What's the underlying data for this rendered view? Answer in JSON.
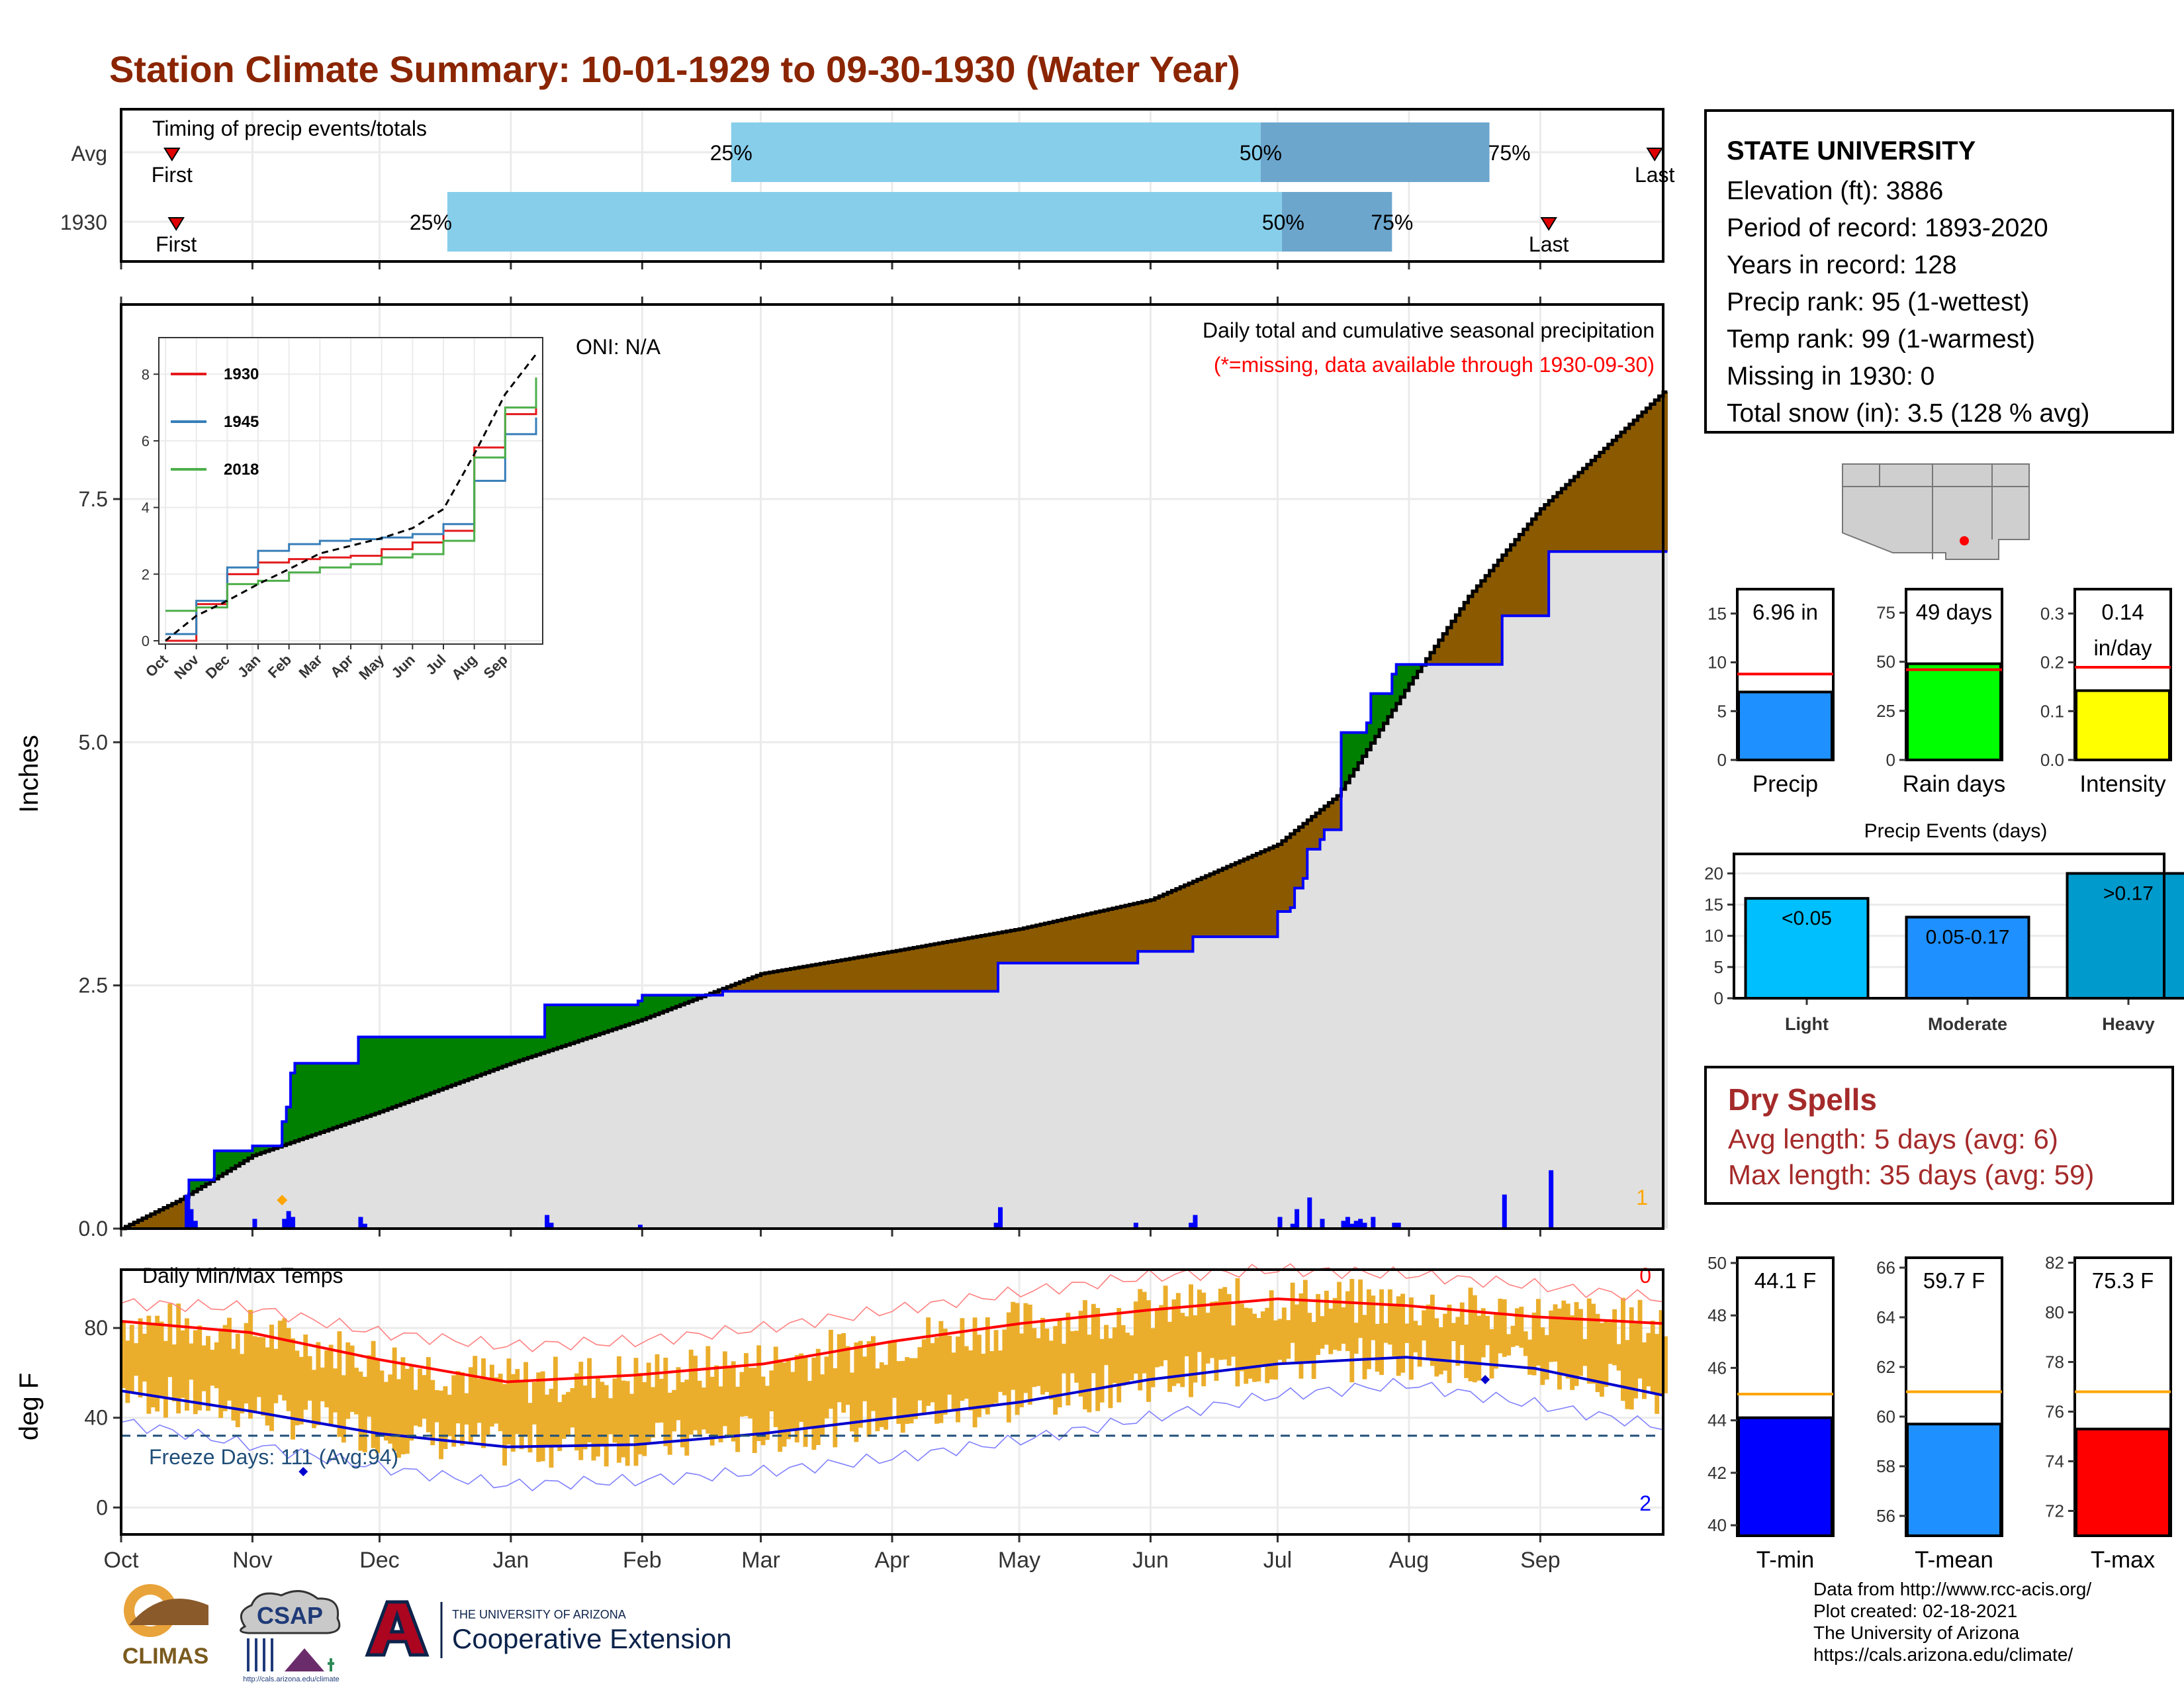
{
  "title": "Station Climate Summary: 10-01-1929 to 09-30-1930 (Water Year)",
  "timing_panel": {
    "label": "Timing of precip events/totals",
    "rows": [
      "Avg",
      "1930"
    ],
    "first_label": "First",
    "last_label": "Last",
    "pct_labels": [
      "25%",
      "50%",
      "75%"
    ],
    "avg": {
      "first": "Oct 13",
      "q25": "Feb 22",
      "q50": "Jun 27",
      "q75": "Aug 20",
      "last": "Sep 28"
    },
    "y1930": {
      "first": "Oct 14",
      "q25": "Dec 17",
      "q50": "Jul 2",
      "q75": "Jul 28",
      "last": "Sep 3"
    }
  },
  "main_chart": {
    "ylabel": "Inches",
    "annotation_title": "Daily total and cumulative seasonal precipitation",
    "annotation_missing": "(*=missing, data available through 1930-09-30)",
    "oni": "ONI: N/A",
    "corner_count": "1",
    "yticks": [
      "0.0",
      "2.5",
      "5.0",
      "7.5"
    ],
    "colors": {
      "above": "#008000",
      "below": "#8B5A00",
      "area": "#E0E0E0",
      "cum": "#0000FF",
      "daily": "#0000FF"
    }
  },
  "inset": {
    "yticks": [
      "0",
      "2",
      "4",
      "6",
      "8"
    ],
    "months": [
      "Oct",
      "Nov",
      "Dec",
      "Jan",
      "Feb",
      "Mar",
      "Apr",
      "May",
      "Jun",
      "Jul",
      "Aug",
      "Sep"
    ],
    "legend": [
      {
        "name": "1930",
        "color": "#E41A1C"
      },
      {
        "name": "1945",
        "color": "#377EB8"
      },
      {
        "name": "2018",
        "color": "#4DAF4A"
      }
    ]
  },
  "temp_chart": {
    "ylabel": "deg F",
    "label": "Daily Min/Max Temps",
    "freeze": "Freeze Days: 111 (Avg:94)",
    "count_hot": "0",
    "count_cold": "2",
    "yticks": [
      "0",
      "40",
      "80"
    ]
  },
  "x_months": [
    "Oct",
    "Nov",
    "Dec",
    "Jan",
    "Feb",
    "Mar",
    "Apr",
    "May",
    "Jun",
    "Jul",
    "Aug",
    "Sep"
  ],
  "station": {
    "name": "STATE UNIVERSITY",
    "lines": [
      "Elevation (ft): 3886",
      "Period of record: 1893-2020",
      "Years in record: 128",
      "Precip rank: 95 (1-wettest)",
      "Temp rank: 99 (1-warmest)",
      "Missing in 1930: 0",
      "Total snow (in): 3.5 (128 % avg)"
    ]
  },
  "bars_precip": [
    {
      "label": "Precip",
      "value_text": "6.96 in",
      "value": 6.96,
      "avg": 8.8,
      "ymax": 17.5,
      "ticks": [
        "0",
        "5",
        "10",
        "15"
      ],
      "tickvals": [
        0,
        5,
        10,
        15
      ],
      "color": "#1E90FF"
    },
    {
      "label": "Rain days",
      "value_text": "49 days",
      "value": 49,
      "avg": 46,
      "ymax": 87,
      "ticks": [
        "0",
        "25",
        "50",
        "75"
      ],
      "tickvals": [
        0,
        25,
        50,
        75
      ],
      "color": "#00FF00"
    },
    {
      "label": "Intensity",
      "value_text": "0.14",
      "value_text2": "in/day",
      "value": 0.142,
      "avg": 0.19,
      "ymax": 0.35,
      "ticks": [
        "0.0",
        "0.1",
        "0.2",
        "0.3"
      ],
      "tickvals": [
        0,
        0.1,
        0.2,
        0.3
      ],
      "color": "#FFFF00"
    }
  ],
  "precip_events": {
    "title": "Precip Events (days)",
    "yticks": [
      "0",
      "5",
      "10",
      "15",
      "20"
    ],
    "categories": [
      "Light",
      "Moderate",
      "Heavy"
    ],
    "bar_labels": [
      "<0.05",
      "0.05-0.17",
      ">0.17"
    ],
    "values": [
      16,
      13,
      20
    ],
    "colors": [
      "#00BFFF",
      "#1E90FF",
      "#009ACD"
    ]
  },
  "dry_spells": {
    "title": "Dry Spells",
    "avg": "Avg length: 5 days (avg: 6)",
    "max": "Max length: 35 days (avg: 59)"
  },
  "bars_temp": [
    {
      "label": "T-min",
      "value_text": "44.1 F",
      "value": 44.1,
      "avg": 45.0,
      "ymin": 39.6,
      "ymax": 50.2,
      "ticks": [
        "40",
        "42",
        "44",
        "46",
        "48",
        "50"
      ],
      "tickvals": [
        40,
        42,
        44,
        46,
        48,
        50
      ],
      "color": "#0000FF"
    },
    {
      "label": "T-mean",
      "value_text": "59.7 F",
      "value": 59.7,
      "avg": 61.0,
      "ymin": 55.2,
      "ymax": 66.4,
      "ticks": [
        "56",
        "58",
        "60",
        "62",
        "64",
        "66"
      ],
      "tickvals": [
        56,
        58,
        60,
        62,
        64,
        66
      ],
      "color": "#1E90FF"
    },
    {
      "label": "T-max",
      "value_text": "75.3 F",
      "value": 75.3,
      "avg": 76.8,
      "ymin": 71.0,
      "ymax": 82.2,
      "ticks": [
        "72",
        "74",
        "76",
        "78",
        "80",
        "82"
      ],
      "tickvals": [
        72,
        74,
        76,
        78,
        80,
        82
      ],
      "color": "#FF0000"
    }
  ],
  "credits": [
    "Data from http://www.rcc-acis.org/",
    "Plot created: 02-18-2021",
    "The University of Arizona",
    "https://cals.arizona.edu/climate/"
  ],
  "logos": {
    "climas": "CLIMAS",
    "csap": "CSAP",
    "csap_url": "http://cals.arizona.edu/climate",
    "ua_small": "THE UNIVERSITY OF ARIZONA",
    "ua_big": "Cooperative Extension"
  },
  "chart_data": [
    {
      "type": "area",
      "title": "Daily total and cumulative seasonal precipitation",
      "ylabel": "Inches",
      "ylim": [
        0,
        9.5
      ],
      "x_dates_range": [
        "1929-10-01",
        "1930-09-30"
      ],
      "cumulative_1930": {
        "x": [
          "1929-10-01",
          "1929-10-15",
          "1929-10-17",
          "1929-10-23",
          "1929-11-01",
          "1929-11-08",
          "1929-11-09",
          "1929-11-10",
          "1929-11-11",
          "1929-11-25",
          "1929-11-26",
          "1930-01-09",
          "1930-01-31",
          "1930-02-01",
          "1930-02-20",
          "1930-04-25",
          "1930-04-26",
          "1930-05-28",
          "1930-05-29",
          "1930-06-10",
          "1930-06-11",
          "1930-06-30",
          "1930-07-01",
          "1930-07-04",
          "1930-07-05",
          "1930-07-07",
          "1930-07-08",
          "1930-07-11",
          "1930-07-12",
          "1930-07-15",
          "1930-07-16",
          "1930-07-22",
          "1930-07-23",
          "1930-07-28",
          "1930-07-29",
          "1930-08-22",
          "1930-08-23",
          "1930-09-02",
          "1930-09-03",
          "1930-09-30"
        ],
        "values": [
          0.0,
          0.0,
          0.5,
          0.8,
          0.85,
          1.1,
          1.25,
          1.6,
          1.7,
          1.7,
          1.97,
          2.3,
          2.34,
          2.4,
          2.44,
          2.44,
          2.73,
          2.73,
          2.85,
          2.85,
          3.0,
          3.0,
          3.26,
          3.3,
          3.5,
          3.6,
          3.9,
          4.0,
          4.1,
          4.1,
          5.1,
          5.2,
          5.5,
          5.7,
          5.8,
          5.8,
          6.3,
          6.3,
          6.96,
          6.96
        ]
      },
      "average_cumulative": {
        "x": [
          "1929-10-01",
          "1929-10-15",
          "1929-11-01",
          "1929-12-01",
          "1930-01-01",
          "1930-02-01",
          "1930-03-01",
          "1930-04-01",
          "1930-05-01",
          "1930-06-01",
          "1930-07-01",
          "1930-07-15",
          "1930-08-01",
          "1930-08-15",
          "1930-09-01",
          "1930-09-30"
        ],
        "values": [
          0.0,
          0.3,
          0.75,
          1.2,
          1.7,
          2.15,
          2.62,
          2.85,
          3.08,
          3.38,
          3.95,
          4.45,
          5.6,
          6.5,
          7.4,
          8.6
        ]
      },
      "daily_precip": {
        "x": [
          "1929-10-16",
          "1929-10-17",
          "1929-10-18",
          "1929-11-01",
          "1929-11-08",
          "1929-11-09",
          "1929-11-10",
          "1929-11-26",
          "1929-11-27",
          "1930-01-09",
          "1930-01-10",
          "1930-01-31",
          "1930-04-25",
          "1930-04-26",
          "1930-05-28",
          "1930-06-10",
          "1930-06-11",
          "1930-07-01",
          "1930-07-04",
          "1930-07-05",
          "1930-07-08",
          "1930-07-11",
          "1930-07-16",
          "1930-07-17",
          "1930-07-18",
          "1930-07-19",
          "1930-07-20",
          "1930-07-21",
          "1930-07-23",
          "1930-07-28",
          "1930-07-29",
          "1930-08-23",
          "1930-09-03"
        ],
        "values": [
          0.35,
          0.2,
          0.08,
          0.1,
          0.1,
          0.18,
          0.12,
          0.12,
          0.05,
          0.14,
          0.06,
          0.04,
          0.06,
          0.22,
          0.06,
          0.06,
          0.14,
          0.12,
          0.05,
          0.2,
          0.32,
          0.1,
          0.08,
          0.12,
          0.05,
          0.08,
          0.1,
          0.06,
          0.12,
          0.06,
          0.06,
          0.35,
          0.6
        ]
      }
    },
    {
      "type": "line",
      "title": "",
      "xlabel": "",
      "ylabel": "",
      "ylim": [
        0,
        8.5
      ],
      "x": [
        "Oct",
        "Nov",
        "Dec",
        "Jan",
        "Feb",
        "Mar",
        "Apr",
        "May",
        "Jun",
        "Jul",
        "Aug",
        "Sep",
        "Sep-end"
      ],
      "series": [
        {
          "name": "1930",
          "values": [
            0.0,
            1.1,
            2.0,
            2.35,
            2.45,
            2.5,
            2.55,
            2.75,
            2.95,
            3.3,
            5.8,
            6.8,
            7.0
          ]
        },
        {
          "name": "1945",
          "values": [
            0.2,
            1.2,
            2.2,
            2.7,
            2.9,
            3.0,
            3.05,
            3.1,
            3.2,
            3.5,
            4.8,
            6.2,
            6.7
          ]
        },
        {
          "name": "2018",
          "values": [
            0.9,
            1.0,
            1.7,
            1.8,
            2.05,
            2.2,
            2.3,
            2.5,
            2.6,
            3.0,
            5.5,
            7.0,
            7.9
          ]
        },
        {
          "values": [
            0.0,
            0.75,
            1.2,
            1.7,
            2.15,
            2.62,
            2.85,
            3.08,
            3.38,
            3.95,
            5.6,
            7.4,
            8.6
          ]
        }
      ]
    },
    {
      "type": "line",
      "title": "Daily Min/Max Temps",
      "ylabel": "deg F",
      "ylim": [
        -12,
        106
      ],
      "x": [
        "Oct",
        "Nov",
        "Dec",
        "Jan",
        "Feb",
        "Mar",
        "Apr",
        "May",
        "Jun",
        "Jul",
        "Aug",
        "Sep",
        "Sep-end"
      ],
      "series": [
        {
          "values": [
            83,
            78,
            66,
            56,
            59,
            64,
            74,
            82,
            88,
            93,
            90,
            85,
            82
          ]
        },
        {
          "values": [
            52,
            43,
            33,
            27,
            28,
            33,
            40,
            47,
            57,
            64,
            67,
            62,
            50
          ]
        },
        {
          "values": [
            91,
            89,
            78,
            72,
            74,
            80,
            88,
            96,
            103,
            106,
            104,
            99,
            93
          ]
        },
        {
          "values": [
            38,
            28,
            18,
            10,
            12,
            16,
            22,
            30,
            40,
            50,
            55,
            46,
            36
          ]
        }
      ],
      "freeze_threshold": 32
    }
  ]
}
